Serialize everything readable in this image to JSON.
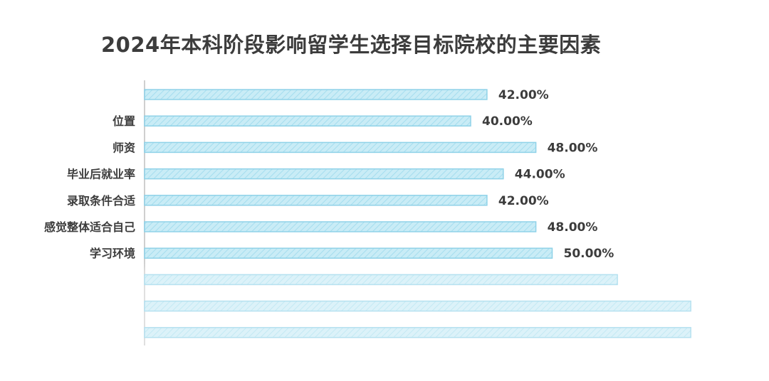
{
  "chart_data": {
    "type": "bar",
    "orientation": "horizontal",
    "title": "2024年本科阶段影响留学生选择目标院校的主要因素",
    "xlabel": "",
    "ylabel": "",
    "xlim": [
      0,
      100
    ],
    "grid": false,
    "legend": "none",
    "categories": [
      "",
      "位置",
      "师资",
      "毕业后就业率",
      "录取条件合适",
      "感觉整体适合自己",
      "学习环境",
      "",
      "",
      ""
    ],
    "values": [
      42,
      40,
      48,
      44,
      42,
      48,
      50,
      58,
      67,
      67
    ],
    "data_labels": [
      "42.00%",
      "40.00%",
      "48.00%",
      "44.00%",
      "42.00%",
      "48.00%",
      "50.00%",
      "",
      "",
      ""
    ],
    "colors": {
      "bar_fill": "#c9ecf6",
      "bar_stroke": "#8fd2e8",
      "hatch": "#a5ddee",
      "axis": "#cfcfcf",
      "label_text": "#3c3c3c"
    }
  }
}
